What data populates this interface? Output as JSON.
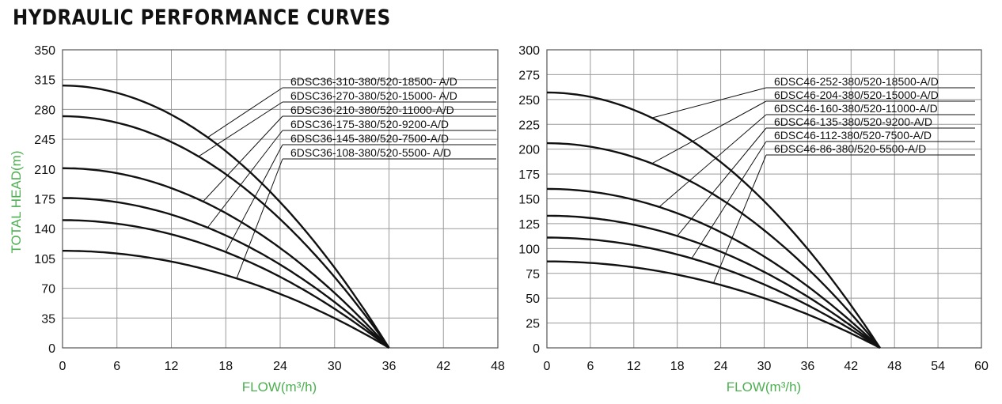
{
  "title": "HYDRAULIC PERFORMANCE CURVES",
  "colors": {
    "axis_label": "#4caf50",
    "grid": "#9a9a9a",
    "curve": "#111111"
  },
  "chart_data": [
    {
      "type": "line",
      "xlabel": "FLOW(m³/h)",
      "ylabel": "TOTAL HEAD(m)",
      "xlim": [
        0,
        48
      ],
      "ylim": [
        0,
        350
      ],
      "xticks": [
        "0",
        "6",
        "12",
        "18",
        "24",
        "30",
        "36",
        "42",
        "48"
      ],
      "yticks": [
        "0",
        "35",
        "70",
        "105",
        "140",
        "175",
        "210",
        "245",
        "280",
        "315",
        "350"
      ],
      "grid": true,
      "series": [
        {
          "name": "6DSC36-310-380/520-18500- A/D",
          "shutoff_head": 308,
          "zero_head_flow": 36
        },
        {
          "name": "6DSC36-270-380/520-15000- A/D",
          "shutoff_head": 272,
          "zero_head_flow": 36
        },
        {
          "name": "6DSC36-210-380/520-11000-A/D",
          "shutoff_head": 211,
          "zero_head_flow": 36
        },
        {
          "name": "6DSC36-175-380/520-9200-A/D",
          "shutoff_head": 176,
          "zero_head_flow": 36
        },
        {
          "name": "6DSC36-145-380/520-7500-A/D",
          "shutoff_head": 150,
          "zero_head_flow": 36
        },
        {
          "name": "6DSC36-108-380/520-5500- A/D",
          "shutoff_head": 114,
          "zero_head_flow": 36
        }
      ],
      "leaders": [
        {
          "flow": 16.0,
          "head_frac": 0.6
        },
        {
          "flow": 15.0,
          "head_frac": 0.59
        },
        {
          "flow": 15.5,
          "head_frac": 0.585
        },
        {
          "flow": 16.0,
          "head_frac": 0.57
        },
        {
          "flow": 18.0,
          "head_frac": 0.53
        },
        {
          "flow": 19.2,
          "head_frac": 0.5
        }
      ]
    },
    {
      "type": "line",
      "xlabel": "FLOW(m³/h)",
      "ylabel": "",
      "xlim": [
        0,
        60
      ],
      "ylim": [
        0,
        300
      ],
      "xticks": [
        "0",
        "6",
        "12",
        "18",
        "24",
        "30",
        "36",
        "42",
        "48",
        "54",
        "60"
      ],
      "yticks": [
        "0",
        "25",
        "50",
        "75",
        "100",
        "125",
        "150",
        "175",
        "200",
        "225",
        "250",
        "275",
        "300"
      ],
      "grid": true,
      "series": [
        {
          "name": "6DSC46-252-380/520-18500-A/D",
          "shutoff_head": 257,
          "zero_head_flow": 46
        },
        {
          "name": "6DSC46-204-380/520-15000-A/D",
          "shutoff_head": 206,
          "zero_head_flow": 46
        },
        {
          "name": "6DSC46-160-380/520-11000-A/D",
          "shutoff_head": 160,
          "zero_head_flow": 46
        },
        {
          "name": "6DSC46-135-380/520-9200-A/D",
          "shutoff_head": 133,
          "zero_head_flow": 46
        },
        {
          "name": "6DSC46-112-380/520-7500-A/D",
          "shutoff_head": 111,
          "zero_head_flow": 46
        },
        {
          "name": "6DSC46-86-380/520-5500-A/D",
          "shutoff_head": 87,
          "zero_head_flow": 46
        }
      ],
      "leaders": [
        {
          "flow": 14.5,
          "head_frac": 0.85
        },
        {
          "flow": 14.5,
          "head_frac": 0.83
        },
        {
          "flow": 15.5,
          "head_frac": 0.8
        },
        {
          "flow": 18.0,
          "head_frac": 0.76
        },
        {
          "flow": 20.0,
          "head_frac": 0.72
        },
        {
          "flow": 23.0,
          "head_frac": 0.66
        }
      ]
    }
  ]
}
